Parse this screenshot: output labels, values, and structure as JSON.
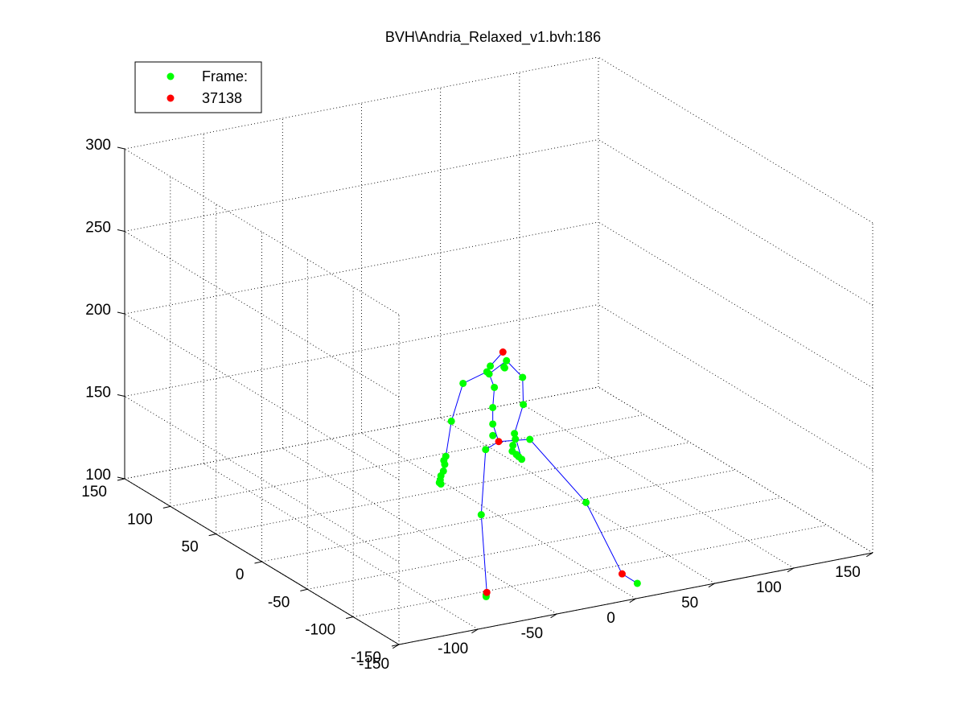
{
  "chart_data": {
    "type": "scatter",
    "title": "BVH\\Andria_Relaxed_v1.bvh:186",
    "projection": "3d",
    "grid": true,
    "legend_position": "top-left",
    "legend": [
      {
        "label": "Frame:",
        "color": "#00ff00"
      },
      {
        "label": "37138",
        "color": "#ff0000"
      }
    ],
    "xlim": [
      -150,
      150
    ],
    "ylim": [
      -150,
      150
    ],
    "zlim": [
      100,
      300
    ],
    "x_ticks": [
      "-150",
      "-100",
      "-50",
      "0",
      "50",
      "100",
      "150"
    ],
    "y_ticks": [
      "-150",
      "-100",
      "-50",
      "0",
      "50",
      "100",
      "150"
    ],
    "z_ticks": [
      "100",
      "150",
      "200",
      "250",
      "300"
    ],
    "bone_color": "#0000ff",
    "series": [
      {
        "color": "#00ff00",
        "points": [
          [
            -3,
            4,
            190
          ],
          [
            -4,
            6,
            186
          ],
          [
            -2,
            7,
            184
          ],
          [
            -22,
            1,
            184
          ],
          [
            9,
            7,
            190
          ],
          [
            8,
            8,
            186
          ],
          [
            9,
            9,
            185
          ],
          [
            -34,
            -7,
            166
          ],
          [
            -41,
            -13,
            148
          ],
          [
            -44,
            -16,
            147
          ],
          [
            -44,
            -17,
            145
          ],
          [
            -46,
            -19,
            142
          ],
          [
            -47,
            -18,
            139
          ],
          [
            -48,
            -19,
            137
          ],
          [
            -48,
            -18,
            135
          ],
          [
            -47,
            -18,
            134
          ],
          [
            14,
            -2,
            182
          ],
          [
            15,
            -1,
            165
          ],
          [
            10,
            0,
            148
          ],
          [
            10,
            -1,
            145
          ],
          [
            9,
            0,
            141
          ],
          [
            8,
            -1,
            138
          ],
          [
            10,
            -2,
            136
          ],
          [
            12,
            -1,
            134
          ],
          [
            14,
            -1,
            132
          ],
          [
            -1,
            3,
            177
          ],
          [
            -2,
            3,
            165
          ],
          [
            -2,
            3,
            155
          ],
          [
            -2,
            3,
            148
          ],
          [
            -10,
            -3,
            143
          ],
          [
            -18,
            -12,
            108
          ],
          [
            -23,
            -26,
            65
          ],
          [
            -23,
            -26,
            64
          ],
          [
            18,
            -3,
            144
          ],
          [
            42,
            -23,
            108
          ],
          [
            60,
            -48,
            64
          ]
        ]
      },
      {
        "color": "#ff0000",
        "points": [
          [
            5,
            4,
            197
          ],
          [
            0,
            0,
            145
          ],
          [
            -22,
            -25,
            66
          ],
          [
            55,
            -40,
            68
          ]
        ]
      }
    ],
    "bones": [
      [
        [
          5,
          4,
          197
        ],
        [
          -3,
          4,
          190
        ],
        [
          -4,
          6,
          186
        ],
        [
          -2,
          7,
          184
        ]
      ],
      [
        [
          -4,
          6,
          186
        ],
        [
          -22,
          1,
          184
        ],
        [
          -34,
          -7,
          166
        ],
        [
          -41,
          -13,
          148
        ],
        [
          -47,
          -18,
          139
        ],
        [
          -48,
          -18,
          135
        ]
      ],
      [
        [
          -2,
          7,
          184
        ],
        [
          9,
          7,
          190
        ],
        [
          14,
          -2,
          182
        ],
        [
          15,
          -1,
          165
        ],
        [
          10,
          0,
          148
        ],
        [
          14,
          -1,
          132
        ]
      ],
      [
        [
          -2,
          7,
          184
        ],
        [
          -1,
          3,
          177
        ],
        [
          -2,
          3,
          165
        ],
        [
          -2,
          3,
          155
        ],
        [
          0,
          0,
          145
        ]
      ],
      [
        [
          0,
          0,
          145
        ],
        [
          -10,
          -3,
          143
        ],
        [
          -18,
          -12,
          108
        ],
        [
          -22,
          -25,
          66
        ]
      ],
      [
        [
          0,
          0,
          145
        ],
        [
          18,
          -3,
          144
        ],
        [
          42,
          -23,
          108
        ],
        [
          55,
          -40,
          68
        ],
        [
          60,
          -48,
          64
        ]
      ]
    ]
  }
}
